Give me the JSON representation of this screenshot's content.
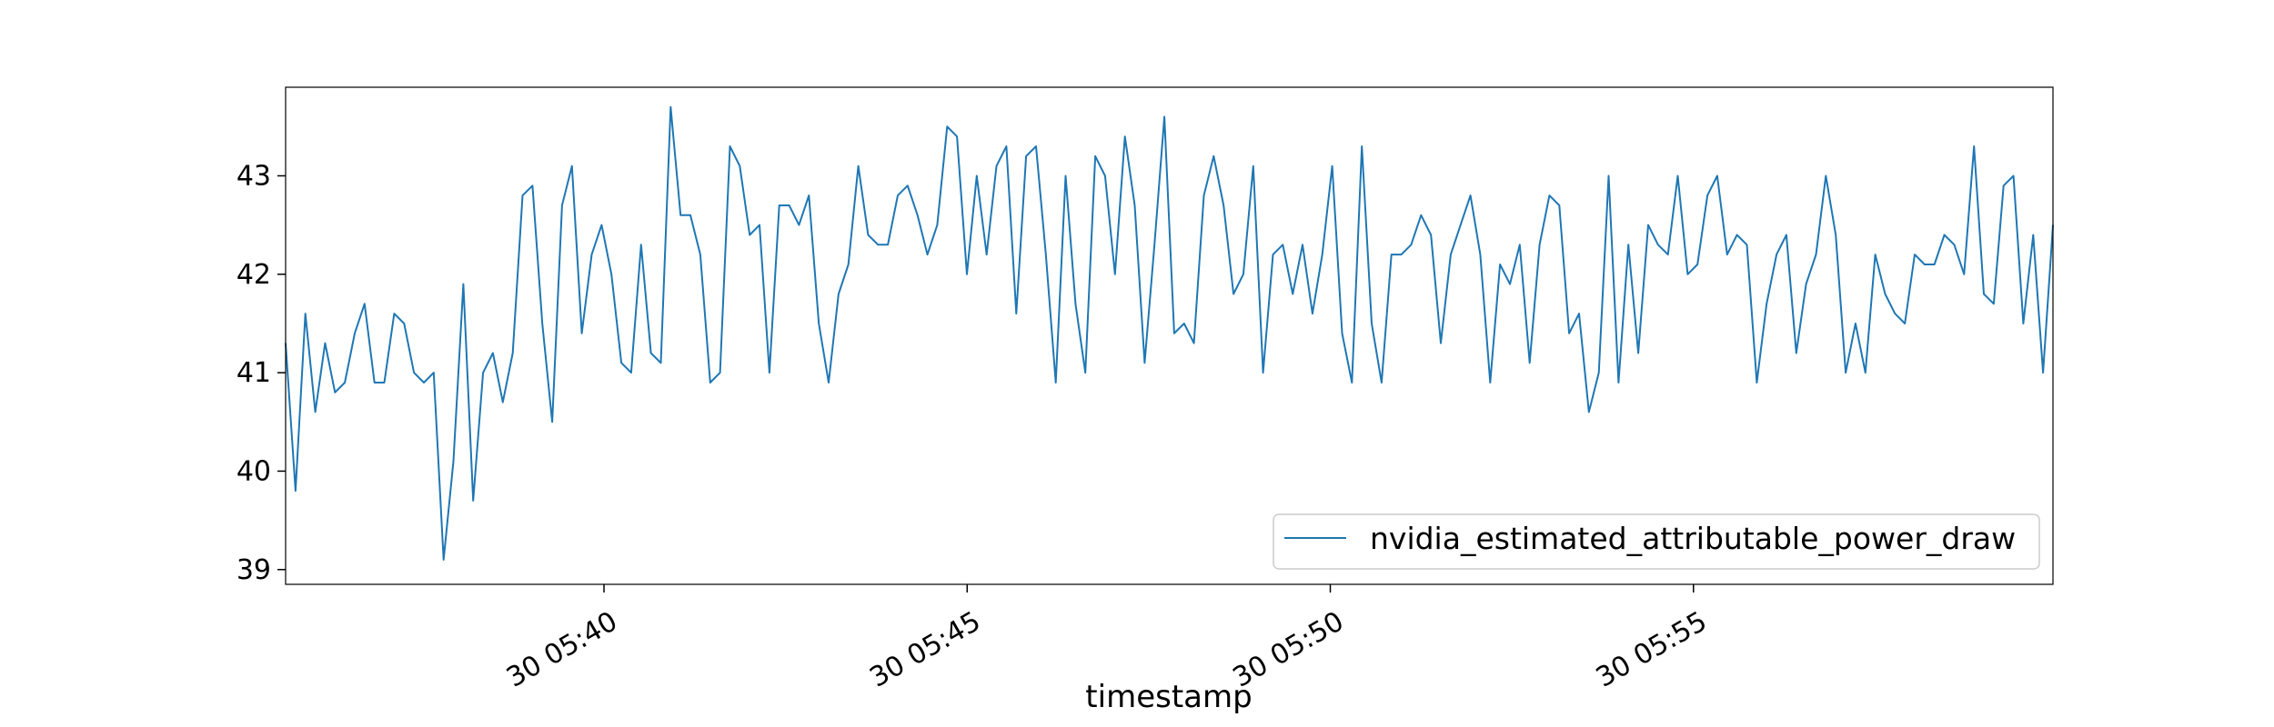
{
  "chart_data": {
    "type": "line",
    "xlabel": "timestamp",
    "ylabel": "",
    "title": "",
    "x_tick_labels": [
      "30 05:40",
      "30 05:45",
      "30 05:50",
      "30 05:55"
    ],
    "x_tick_values": [
      "05:40:00",
      "05:45:00",
      "05:50:00",
      "05:55:00"
    ],
    "x_start": "05:35:37",
    "x_end": "05:59:57",
    "y_ticks": [
      39,
      40,
      41,
      42,
      43
    ],
    "ylim": [
      38.85,
      43.9
    ],
    "grid": false,
    "legend_placement": "bottom-right",
    "series": [
      {
        "name": "nvidia_estimated_attributable_power_draw",
        "color": "#1f77b4",
        "values": [
          41.3,
          39.8,
          41.6,
          40.6,
          41.3,
          40.8,
          40.9,
          41.4,
          41.7,
          40.9,
          40.9,
          41.6,
          41.5,
          41.0,
          40.9,
          41.0,
          39.1,
          40.1,
          41.9,
          39.7,
          41.0,
          41.2,
          40.7,
          41.2,
          42.8,
          42.9,
          41.5,
          40.5,
          42.7,
          43.1,
          41.4,
          42.2,
          42.5,
          42.0,
          41.1,
          41.0,
          42.3,
          41.2,
          41.1,
          43.7,
          42.6,
          42.6,
          42.2,
          40.9,
          41.0,
          43.3,
          43.1,
          42.4,
          42.5,
          41.0,
          42.7,
          42.7,
          42.5,
          42.8,
          41.5,
          40.9,
          41.8,
          42.1,
          43.1,
          42.4,
          42.3,
          42.3,
          42.8,
          42.9,
          42.6,
          42.2,
          42.5,
          43.5,
          43.4,
          42.0,
          43.0,
          42.2,
          43.1,
          43.3,
          41.6,
          43.2,
          43.3,
          42.2,
          40.9,
          43.0,
          41.7,
          41.0,
          43.2,
          43.0,
          42.0,
          43.4,
          42.7,
          41.1,
          42.3,
          43.6,
          41.4,
          41.5,
          41.3,
          42.8,
          43.2,
          42.7,
          41.8,
          42.0,
          43.1,
          41.0,
          42.2,
          42.3,
          41.8,
          42.3,
          41.6,
          42.2,
          43.1,
          41.4,
          40.9,
          43.3,
          41.5,
          40.9,
          42.2,
          42.2,
          42.3,
          42.6,
          42.4,
          41.3,
          42.2,
          42.5,
          42.8,
          42.2,
          40.9,
          42.1,
          41.9,
          42.3,
          41.1,
          42.3,
          42.8,
          42.7,
          41.4,
          41.6,
          40.6,
          41.0,
          43.0,
          40.9,
          42.3,
          41.2,
          42.5,
          42.3,
          42.2,
          43.0,
          42.0,
          42.1,
          42.8,
          43.0,
          42.2,
          42.4,
          42.3,
          40.9,
          41.7,
          42.2,
          42.4,
          41.2,
          41.9,
          42.2,
          43.0,
          42.4,
          41.0,
          41.5,
          41.0,
          42.2,
          41.8,
          41.6,
          41.5,
          42.2,
          42.1,
          42.1,
          42.4,
          42.3,
          42.0,
          43.3,
          41.8,
          41.7,
          42.9,
          43.0,
          41.5,
          42.4,
          41.0,
          42.5
        ]
      }
    ]
  }
}
